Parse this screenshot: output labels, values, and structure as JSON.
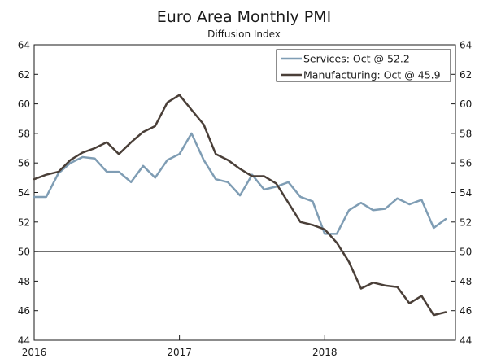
{
  "chart_data": {
    "type": "line",
    "title": "Euro Area Monthly PMI",
    "subtitle": "Diffusion Index",
    "xlabel": "",
    "ylabel": "",
    "ylim": [
      44,
      64
    ],
    "yticks": [
      44,
      46,
      48,
      50,
      52,
      54,
      56,
      58,
      60,
      62,
      64
    ],
    "xlim": [
      2016,
      2018.9
    ],
    "xticks": [
      {
        "value": 2016,
        "label": "2016"
      },
      {
        "value": 2017,
        "label": "2017"
      },
      {
        "value": 2018,
        "label": "2018"
      }
    ],
    "reference_line": 50,
    "legend_position": "top-right",
    "x": [
      2016.0,
      2016.083,
      2016.167,
      2016.25,
      2016.333,
      2016.417,
      2016.5,
      2016.583,
      2016.667,
      2016.75,
      2016.833,
      2016.917,
      2017.0,
      2017.083,
      2017.167,
      2017.25,
      2017.333,
      2017.417,
      2017.5,
      2017.583,
      2017.667,
      2017.75,
      2017.833,
      2017.917,
      2018.0,
      2018.083,
      2018.167,
      2018.25,
      2018.333,
      2018.417,
      2018.5,
      2018.583,
      2018.667,
      2018.75,
      2018.833
    ],
    "series": [
      {
        "name": "Services",
        "legend_label": "Services: Oct @ 52.2",
        "color": "#7f9db4",
        "values": [
          53.7,
          53.7,
          55.3,
          56.0,
          56.4,
          56.3,
          55.4,
          55.4,
          54.7,
          55.8,
          55.0,
          56.2,
          56.6,
          58.0,
          56.2,
          54.9,
          54.7,
          53.8,
          55.2,
          54.2,
          54.4,
          54.7,
          53.7,
          53.4,
          51.2,
          51.2,
          52.8,
          53.3,
          52.8,
          52.9,
          53.6,
          53.2,
          53.5,
          51.6,
          52.2
        ]
      },
      {
        "name": "Manufacturing",
        "legend_label": "Manufacturing: Oct @ 45.9",
        "color": "#4a3f38",
        "values": [
          54.9,
          55.2,
          55.4,
          56.2,
          56.7,
          57.0,
          57.4,
          56.6,
          57.4,
          58.1,
          58.5,
          60.1,
          60.6,
          59.6,
          58.6,
          56.6,
          56.2,
          55.6,
          55.1,
          55.1,
          54.6,
          53.3,
          52.0,
          51.8,
          51.5,
          50.6,
          49.3,
          47.5,
          47.9,
          47.7,
          47.6,
          46.5,
          47.0,
          45.7,
          45.9
        ]
      }
    ]
  }
}
